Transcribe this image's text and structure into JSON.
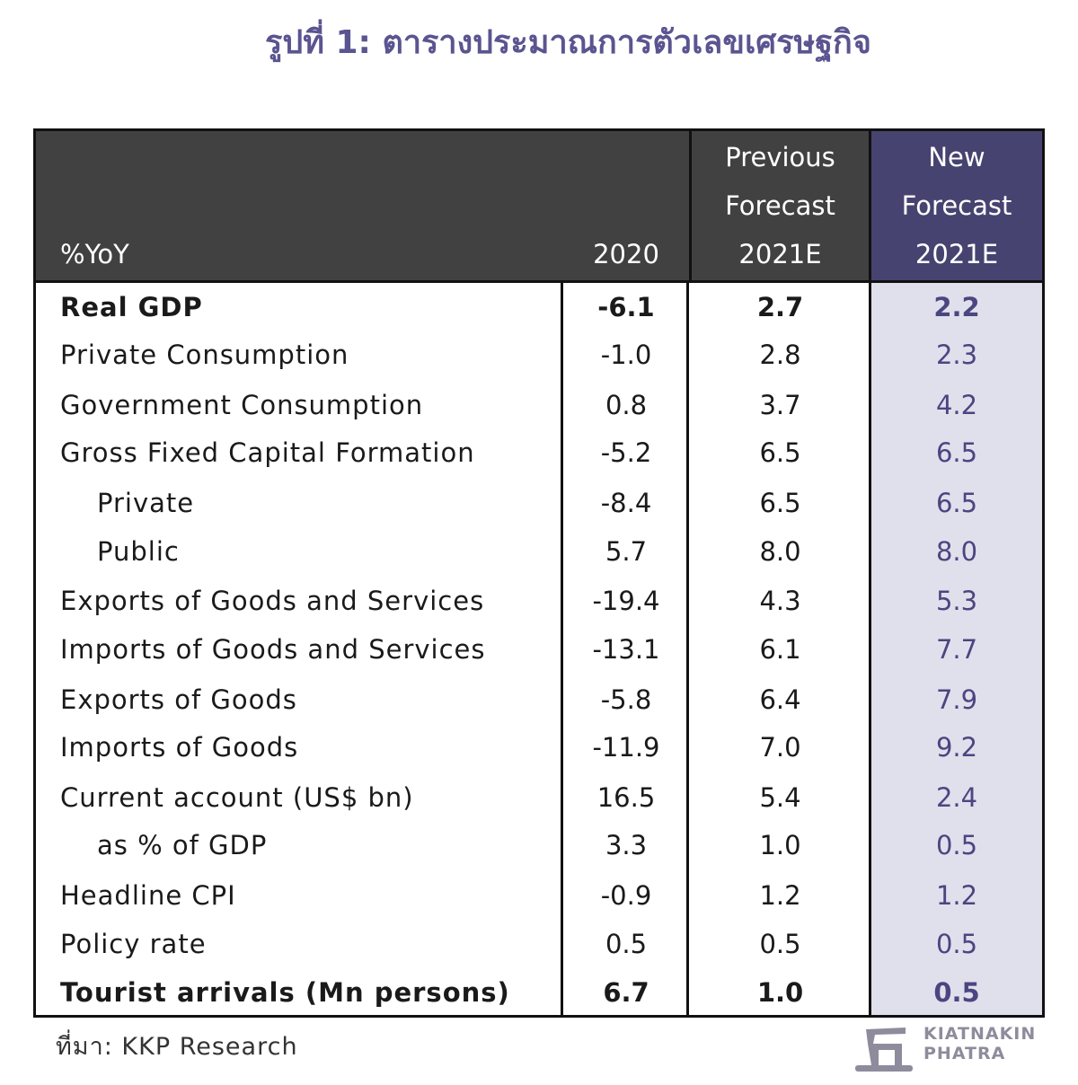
{
  "title": "รูปที่ 1: ตารางประมาณการตัวเลขเศรษฐกิจ",
  "table": {
    "header": {
      "label": "%YoY",
      "col_2020": [
        "2020"
      ],
      "col_prev": [
        "Previous",
        "Forecast",
        "2021E"
      ],
      "col_new": [
        "New",
        "Forecast",
        "2021E"
      ]
    },
    "rows": [
      {
        "label": "Real GDP",
        "v2020": "-6.1",
        "prev": "2.7",
        "new": "2.2",
        "bold": true,
        "indent": false
      },
      {
        "label": "Private Consumption",
        "v2020": "-1.0",
        "prev": "2.8",
        "new": "2.3",
        "bold": false,
        "indent": false
      },
      {
        "label": "Government Consumption",
        "v2020": "0.8",
        "prev": "3.7",
        "new": "4.2",
        "bold": false,
        "indent": false
      },
      {
        "label": "Gross Fixed Capital Formation",
        "v2020": "-5.2",
        "prev": "6.5",
        "new": "6.5",
        "bold": false,
        "indent": false
      },
      {
        "label": "Private",
        "v2020": "-8.4",
        "prev": "6.5",
        "new": "6.5",
        "bold": false,
        "indent": true
      },
      {
        "label": "Public",
        "v2020": "5.7",
        "prev": "8.0",
        "new": "8.0",
        "bold": false,
        "indent": true
      },
      {
        "label": "Exports of Goods and Services",
        "v2020": "-19.4",
        "prev": "4.3",
        "new": "5.3",
        "bold": false,
        "indent": false
      },
      {
        "label": "Imports of Goods and Services",
        "v2020": "-13.1",
        "prev": "6.1",
        "new": "7.7",
        "bold": false,
        "indent": false
      },
      {
        "label": "Exports of Goods",
        "v2020": "-5.8",
        "prev": "6.4",
        "new": "7.9",
        "bold": false,
        "indent": false
      },
      {
        "label": "Imports of Goods",
        "v2020": "-11.9",
        "prev": "7.0",
        "new": "9.2",
        "bold": false,
        "indent": false
      },
      {
        "label": "Current account (US$ bn)",
        "v2020": "16.5",
        "prev": "5.4",
        "new": "2.4",
        "bold": false,
        "indent": false
      },
      {
        "label": "as % of GDP",
        "v2020": "3.3",
        "prev": "1.0",
        "new": "0.5",
        "bold": false,
        "indent": true
      },
      {
        "label": "Headline CPI",
        "v2020": "-0.9",
        "prev": "1.2",
        "new": "1.2",
        "bold": false,
        "indent": false
      },
      {
        "label": "Policy rate",
        "v2020": "0.5",
        "prev": "0.5",
        "new": "0.5",
        "bold": false,
        "indent": false
      },
      {
        "label": "Tourist arrivals (Mn persons)",
        "v2020": "6.7",
        "prev": "1.0",
        "new": "0.5",
        "bold": true,
        "indent": false
      }
    ]
  },
  "source": "ที่มา: KKP Research",
  "logo": {
    "line1": "KIATNAKIN",
    "line2": "PHATRA",
    "icon": "kkp-logo-icon"
  },
  "colors": {
    "header_bg": "#414141",
    "new_header_bg": "#474370",
    "new_col_bg": "#e0dfec",
    "title": "#5a5590"
  }
}
